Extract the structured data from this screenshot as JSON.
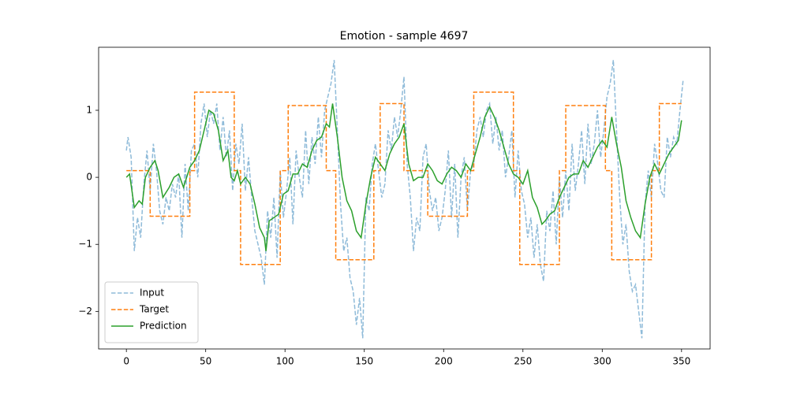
{
  "chart_data": {
    "type": "line",
    "title": "Emotion - sample 4697",
    "xlim": [
      -17.5,
      368
    ],
    "ylim": [
      -2.56,
      1.94
    ],
    "xticks": [
      0,
      50,
      100,
      150,
      200,
      250,
      300,
      350
    ],
    "yticks": [
      {
        "value": -2,
        "label": "−2"
      },
      {
        "value": -1,
        "label": "−1"
      },
      0,
      1
    ],
    "legend": "lower left",
    "series": [
      {
        "name": "Input",
        "color": "#1f77b4",
        "linestyle": "dashed",
        "alpha": 0.5,
        "x": [
          0,
          1,
          3,
          5,
          7,
          9,
          11,
          13,
          15,
          17,
          19,
          21,
          23,
          25,
          27,
          29,
          31,
          33,
          35,
          37,
          39,
          41,
          43,
          45,
          47,
          49,
          51,
          53,
          55,
          57,
          59,
          61,
          63,
          65,
          67,
          69,
          71,
          73,
          75,
          77,
          79,
          81,
          83,
          85,
          87,
          89,
          91,
          93,
          95,
          97,
          99,
          101,
          103,
          105,
          107,
          109,
          111,
          113,
          115,
          117,
          119,
          121,
          123,
          125,
          127,
          129,
          131,
          133,
          135,
          137,
          139,
          141,
          143,
          145,
          147,
          149,
          151,
          153,
          155,
          157,
          159,
          161,
          163,
          165,
          167,
          169,
          171,
          173,
          175,
          177,
          179,
          181,
          183,
          185,
          187,
          189,
          191,
          193,
          195,
          197,
          199,
          201,
          203,
          205,
          207,
          209,
          211,
          213,
          215,
          217,
          219,
          221,
          223,
          225,
          227,
          229,
          231,
          233,
          235,
          237,
          239,
          241,
          243,
          245,
          247,
          249,
          251,
          253,
          255,
          257,
          259,
          261,
          263,
          265,
          267,
          269,
          271,
          273,
          275,
          277,
          279,
          281,
          283,
          285,
          287,
          289,
          291,
          293,
          295,
          297,
          299,
          301,
          303,
          305,
          307,
          309,
          311,
          313,
          315,
          317,
          319,
          321,
          323,
          325,
          327,
          329,
          331,
          333,
          335,
          337,
          339,
          341,
          343,
          345,
          347,
          349,
          351
        ],
        "values": [
          0.4,
          0.6,
          0.3,
          -1.1,
          -0.6,
          -0.9,
          -0.1,
          0.4,
          -0.2,
          0.5,
          0.1,
          -0.5,
          -0.7,
          -0.3,
          -0.5,
          -0.1,
          -0.3,
          0.05,
          -0.9,
          0.2,
          -0.5,
          0.4,
          0.5,
          0.0,
          0.8,
          1.1,
          0.6,
          1.0,
          0.8,
          1.1,
          0.4,
          0.9,
          0.3,
          0.7,
          -0.2,
          0.5,
          0.2,
          0.8,
          -0.2,
          0.3,
          -0.3,
          -0.8,
          -1.0,
          -1.2,
          -1.6,
          -0.5,
          -0.9,
          -0.3,
          -1.2,
          0.1,
          -0.6,
          -0.2,
          0.3,
          -0.7,
          0.4,
          0.0,
          -0.3,
          0.7,
          -0.1,
          0.6,
          0.2,
          0.9,
          0.3,
          1.0,
          1.2,
          1.4,
          1.75,
          0.7,
          -0.4,
          -1.1,
          -0.9,
          -1.5,
          -1.7,
          -2.2,
          -1.8,
          -2.4,
          -0.3,
          -0.5,
          0.2,
          0.5,
          0.1,
          -0.3,
          -0.1,
          0.7,
          0.4,
          0.9,
          0.6,
          1.0,
          1.5,
          0.2,
          -0.3,
          -1.1,
          -0.6,
          -0.8,
          0.3,
          0.5,
          -0.2,
          -0.5,
          -0.3,
          -0.8,
          -0.6,
          -0.2,
          0.4,
          -0.6,
          0.2,
          -0.9,
          0.0,
          0.3,
          -0.5,
          0.1,
          0.2,
          0.7,
          0.9,
          0.6,
          1.0,
          1.1,
          0.5,
          0.9,
          0.4,
          0.7,
          0.0,
          0.3,
          0.7,
          -0.3,
          0.4,
          -0.2,
          -0.4,
          -0.9,
          -0.6,
          -1.2,
          -0.7,
          -1.3,
          -1.55,
          -0.5,
          -0.8,
          -0.2,
          -1.0,
          0.0,
          -0.6,
          0.1,
          -0.5,
          0.5,
          -0.2,
          0.2,
          0.7,
          -0.1,
          0.8,
          0.2,
          0.5,
          1.0,
          0.3,
          0.7,
          1.2,
          1.4,
          1.75,
          0.7,
          -0.3,
          -1.0,
          -0.7,
          -1.4,
          -1.7,
          -1.6,
          -2.0,
          -2.4,
          -0.4,
          0.1,
          -0.3,
          0.5,
          0.2,
          -0.2,
          -0.3,
          0.6,
          0.3,
          0.6,
          0.5,
          1.0,
          1.45
        ]
      },
      {
        "name": "Target",
        "color": "#ff7f0e",
        "linestyle": "dashed",
        "alpha": 1,
        "x": [
          0,
          15,
          15,
          40,
          40,
          43,
          43,
          68,
          68,
          72,
          72,
          97,
          97,
          102,
          102,
          126,
          126,
          132,
          132,
          156,
          156,
          160,
          160,
          175,
          175,
          190,
          190,
          215,
          215,
          219,
          219,
          244,
          244,
          248,
          248,
          273,
          273,
          277,
          277,
          302,
          302,
          306,
          306,
          331,
          331,
          336,
          336,
          350
        ],
        "values": [
          0.1,
          0.1,
          -0.58,
          -0.58,
          0.1,
          0.1,
          1.27,
          1.27,
          0.1,
          0.1,
          -1.3,
          -1.3,
          0.1,
          0.1,
          1.07,
          1.07,
          0.1,
          0.1,
          -1.23,
          -1.23,
          0.1,
          0.1,
          1.1,
          1.1,
          0.1,
          0.1,
          -0.58,
          -0.58,
          0.1,
          0.1,
          1.27,
          1.27,
          0.1,
          0.1,
          -1.3,
          -1.3,
          0.1,
          0.1,
          1.07,
          1.07,
          0.1,
          0.1,
          -1.23,
          -1.23,
          0.1,
          0.1,
          1.1,
          1.1
        ]
      },
      {
        "name": "Prediction",
        "color": "#2ca02c",
        "linestyle": "solid",
        "alpha": 1,
        "x": [
          0,
          2,
          5,
          8,
          10,
          12,
          15,
          18,
          20,
          23,
          27,
          30,
          33,
          36,
          40,
          43,
          46,
          49,
          52,
          55,
          58,
          61,
          64,
          66,
          68,
          70,
          72,
          75,
          78,
          81,
          84,
          87,
          88,
          90,
          93,
          96,
          99,
          102,
          105,
          108,
          111,
          114,
          117,
          120,
          123,
          126,
          128,
          130,
          133,
          136,
          139,
          142,
          145,
          148,
          151,
          154,
          157,
          160,
          163,
          166,
          169,
          172,
          175,
          178,
          181,
          184,
          187,
          190,
          193,
          196,
          199,
          202,
          205,
          208,
          211,
          214,
          217,
          220,
          223,
          226,
          229,
          232,
          235,
          238,
          241,
          244,
          247,
          250,
          253,
          256,
          259,
          262,
          264,
          267,
          270,
          273,
          276,
          279,
          282,
          285,
          288,
          291,
          294,
          297,
          300,
          303,
          306,
          309,
          312,
          315,
          318,
          321,
          324,
          327,
          330,
          333,
          336,
          339,
          342,
          345,
          348,
          350
        ],
        "values": [
          0,
          0.05,
          -0.45,
          -0.35,
          -0.4,
          0,
          0.15,
          0.25,
          0.1,
          -0.3,
          -0.15,
          0,
          0.05,
          -0.15,
          0.15,
          0.25,
          0.4,
          0.7,
          1.0,
          0.95,
          0.7,
          0.25,
          0.4,
          0.0,
          -0.05,
          0.1,
          -0.1,
          0.0,
          -0.1,
          -0.4,
          -0.75,
          -0.9,
          -1.1,
          -0.65,
          -0.6,
          -0.55,
          -0.25,
          -0.2,
          0.05,
          0.05,
          0.2,
          0.15,
          0.4,
          0.55,
          0.6,
          0.8,
          0.75,
          1.1,
          0.6,
          0.0,
          -0.35,
          -0.5,
          -0.8,
          -0.9,
          -0.4,
          0.0,
          0.3,
          0.2,
          0.1,
          0.35,
          0.5,
          0.6,
          0.8,
          0.2,
          -0.05,
          0.0,
          0.0,
          0.2,
          0.1,
          -0.05,
          -0.1,
          0.05,
          0.15,
          0.1,
          0.0,
          0.2,
          0.1,
          0.35,
          0.6,
          0.9,
          1.05,
          0.9,
          0.7,
          0.45,
          0.2,
          0.05,
          0.0,
          -0.1,
          0.1,
          -0.3,
          -0.45,
          -0.7,
          -0.65,
          -0.55,
          -0.5,
          -0.3,
          -0.15,
          0.0,
          0.05,
          0.05,
          0.25,
          0.15,
          0.3,
          0.45,
          0.55,
          0.45,
          0.9,
          0.5,
          0.15,
          -0.35,
          -0.6,
          -0.8,
          -0.9,
          -0.4,
          0.0,
          0.2,
          0.05,
          0.2,
          0.35,
          0.45,
          0.55,
          0.85
        ]
      }
    ]
  }
}
